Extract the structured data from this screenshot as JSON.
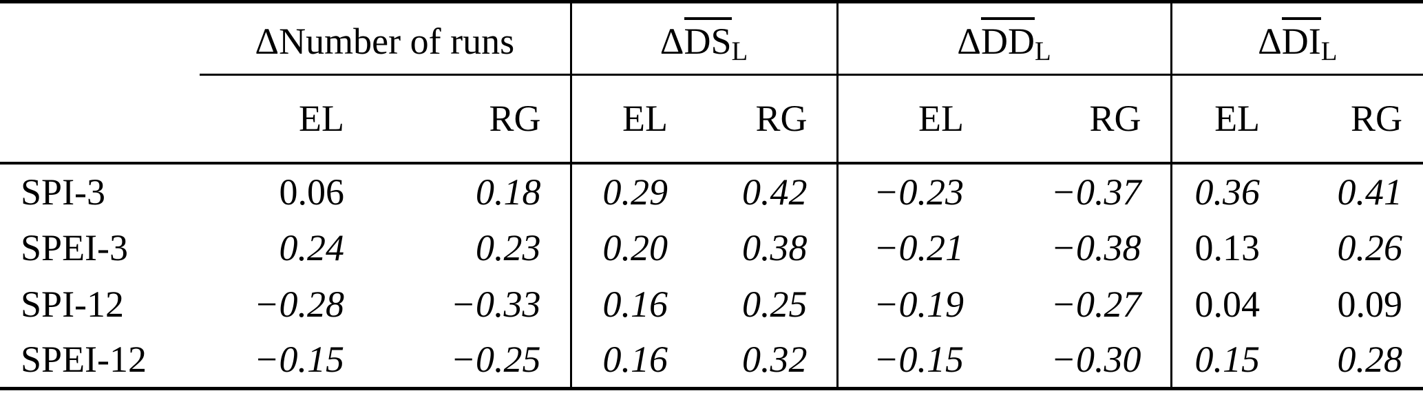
{
  "table": {
    "corner": "",
    "groups": [
      {
        "prefix": "Δ",
        "main": "Number of runs",
        "overlined": false,
        "sub": ""
      },
      {
        "prefix": "Δ",
        "main": "DS",
        "overlined": true,
        "sub": "L"
      },
      {
        "prefix": "Δ",
        "main": "DD",
        "overlined": true,
        "sub": "L"
      },
      {
        "prefix": "Δ",
        "main": "DI",
        "overlined": true,
        "sub": "L"
      }
    ],
    "subheaders": [
      "EL",
      "RG",
      "EL",
      "RG",
      "EL",
      "RG",
      "EL",
      "RG"
    ],
    "rows": [
      {
        "label": "SPI-3",
        "cells": [
          {
            "v": "0.06",
            "italic": false
          },
          {
            "v": "0.18",
            "italic": true
          },
          {
            "v": "0.29",
            "italic": true
          },
          {
            "v": "0.42",
            "italic": true
          },
          {
            "v": "−0.23",
            "italic": true
          },
          {
            "v": "−0.37",
            "italic": true
          },
          {
            "v": "0.36",
            "italic": true
          },
          {
            "v": "0.41",
            "italic": true
          }
        ]
      },
      {
        "label": "SPEI-3",
        "cells": [
          {
            "v": "0.24",
            "italic": true
          },
          {
            "v": "0.23",
            "italic": true
          },
          {
            "v": "0.20",
            "italic": true
          },
          {
            "v": "0.38",
            "italic": true
          },
          {
            "v": "−0.21",
            "italic": true
          },
          {
            "v": "−0.38",
            "italic": true
          },
          {
            "v": "0.13",
            "italic": false
          },
          {
            "v": "0.26",
            "italic": true
          }
        ]
      },
      {
        "label": "SPI-12",
        "cells": [
          {
            "v": "−0.28",
            "italic": true
          },
          {
            "v": "−0.33",
            "italic": true
          },
          {
            "v": "0.16",
            "italic": true
          },
          {
            "v": "0.25",
            "italic": true
          },
          {
            "v": "−0.19",
            "italic": true
          },
          {
            "v": "−0.27",
            "italic": true
          },
          {
            "v": "0.04",
            "italic": false
          },
          {
            "v": "0.09",
            "italic": false
          }
        ]
      },
      {
        "label": "SPEI-12",
        "cells": [
          {
            "v": "−0.15",
            "italic": true
          },
          {
            "v": "−0.25",
            "italic": true
          },
          {
            "v": "0.16",
            "italic": true
          },
          {
            "v": "0.32",
            "italic": true
          },
          {
            "v": "−0.15",
            "italic": true
          },
          {
            "v": "−0.30",
            "italic": true
          },
          {
            "v": "0.15",
            "italic": true
          },
          {
            "v": "0.28",
            "italic": true
          }
        ]
      }
    ],
    "colors": {
      "text": "#000000",
      "background": "#ffffff",
      "rule": "#000000"
    }
  }
}
